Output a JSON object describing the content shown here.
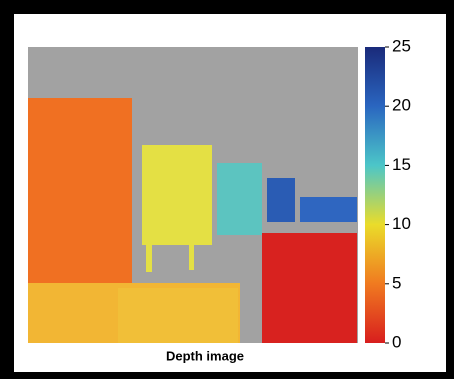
{
  "caption": "Depth image",
  "colorbar": {
    "range": [
      0,
      25
    ],
    "ticks": [
      0,
      5,
      10,
      15,
      20,
      25
    ]
  }
}
